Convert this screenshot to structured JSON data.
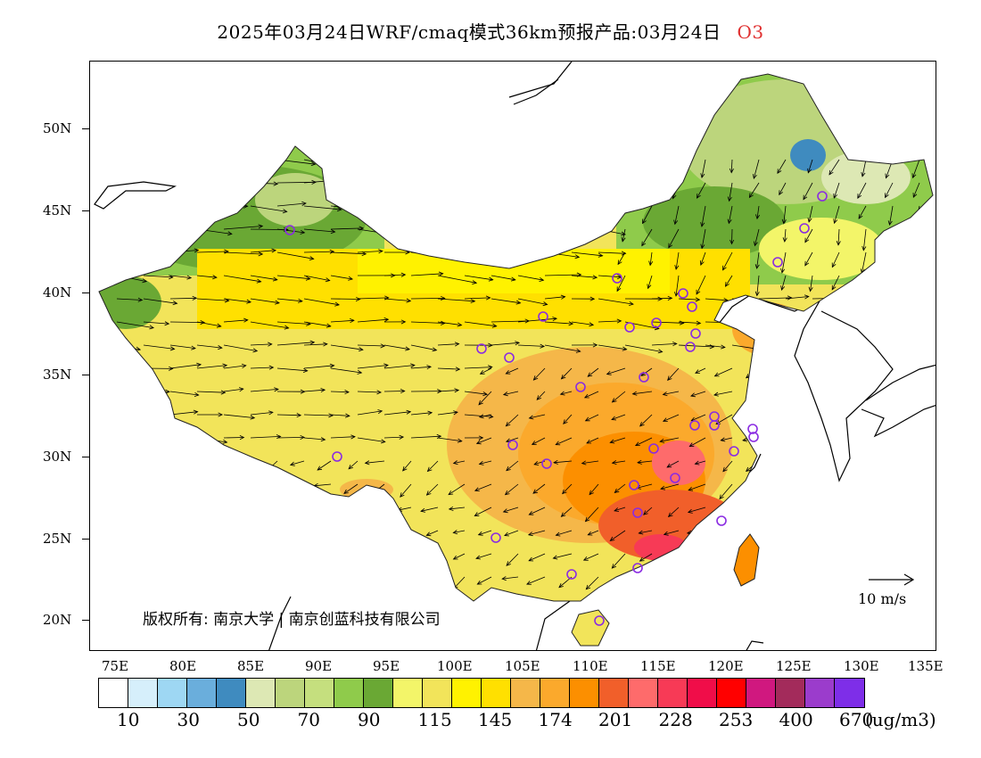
{
  "title": {
    "main": "2025年03月24日WRF/cmaq模式36km预报产品:03月24日",
    "species": "O3"
  },
  "colors": {
    "species_label": "#e03030"
  },
  "axes": {
    "lat_labels": [
      "50N",
      "45N",
      "40N",
      "35N",
      "30N",
      "25N",
      "20N"
    ],
    "lon_labels": [
      "75E",
      "80E",
      "85E",
      "90E",
      "95E",
      "100E",
      "105E",
      "110E",
      "115E",
      "120E",
      "125E",
      "130E",
      "135E"
    ]
  },
  "copyright": "版权所有: 南京大学 | 南京创蓝科技有限公司",
  "wind_reference": "10 m/s",
  "colorbar": {
    "colors": [
      "#ffffff",
      "#d6effb",
      "#9ed7f3",
      "#6aaedc",
      "#3f8bbf",
      "#dde8b4",
      "#bcd57c",
      "#c5df7e",
      "#8fcb4b",
      "#6aa834",
      "#f3f569",
      "#f2e45a",
      "#fff200",
      "#ffe000",
      "#f5b749",
      "#fba92c",
      "#fc8f00",
      "#f15f2a",
      "#fe6b6b",
      "#f73a56",
      "#f00d49",
      "#ff0000",
      "#d0187f",
      "#a32b5b",
      "#9b3ccc",
      "#7e2ee8"
    ],
    "labels": [
      "10",
      "30",
      "50",
      "70",
      "90",
      "115",
      "145",
      "174",
      "201",
      "228",
      "253",
      "400",
      "670"
    ],
    "units": "(ug/m3)"
  },
  "map": {
    "stations": 34
  }
}
